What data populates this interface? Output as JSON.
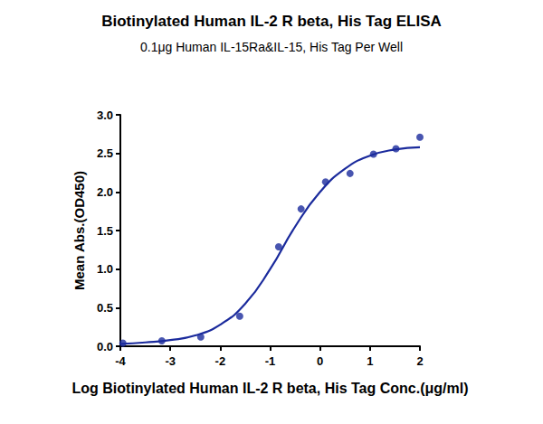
{
  "chart_data": {
    "type": "scatter",
    "title": "Biotinylated Human IL-2 R beta, His Tag ELISA",
    "subtitle": "0.1μg Human IL-15Ra&IL-15, His Tag Per Well",
    "x_label": "Log Biotinylated Human IL-2 R beta, His Tag Conc.(μg/ml)",
    "y_label": "Mean Abs.(OD450)",
    "color": "#1a2a9c",
    "grid": false,
    "xlim": [
      -4,
      2
    ],
    "xticks": [
      -4,
      -3,
      -2,
      -1,
      0,
      1,
      2
    ],
    "ylim": [
      0,
      3
    ],
    "yticks": [
      {
        "value": 0,
        "label": "0.0"
      },
      0.5,
      {
        "value": 1,
        "label": "1.0"
      },
      1.5,
      {
        "value": 2,
        "label": "2.0"
      },
      2.5,
      {
        "value": 3,
        "label": "3.0"
      }
    ],
    "series": [
      {
        "type": "scatter",
        "marker": "circle",
        "x": [
          -3.95,
          -3.17,
          -2.39,
          -1.61,
          -0.83,
          -0.38,
          0.11,
          0.6,
          1.07,
          1.52,
          2.0
        ],
        "values": [
          0.04,
          0.07,
          0.12,
          0.39,
          1.29,
          1.78,
          2.13,
          2.24,
          2.49,
          2.56,
          2.71
        ]
      },
      {
        "type": "line",
        "line_style": "solid",
        "x": [
          -4,
          -3.5,
          -3,
          -2.5,
          -2,
          -1.5,
          -1,
          -0.5,
          0,
          0.5,
          1,
          1.5,
          2
        ],
        "values": [
          0.03,
          0.05,
          0.08,
          0.14,
          0.28,
          0.55,
          1.0,
          1.55,
          2.0,
          2.3,
          2.47,
          2.55,
          2.58
        ]
      }
    ]
  }
}
